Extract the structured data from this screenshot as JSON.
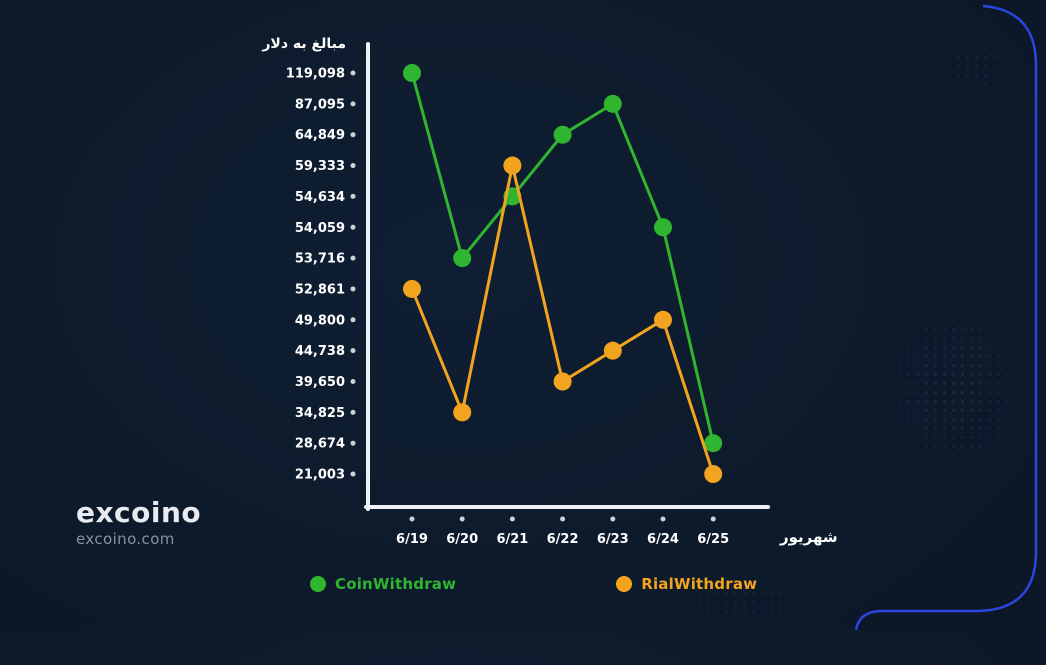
{
  "page": {
    "background_color": "#0d1a2b",
    "frame_accent_color": "#2b49e8"
  },
  "logo": {
    "brand": "excoino",
    "domain": "excoino.com"
  },
  "legend": [
    {
      "label": "CoinWithdraw",
      "color": "#2fb52f"
    },
    {
      "label": "RialWithdraw",
      "color": "#f2a41f"
    }
  ],
  "chart_data": {
    "type": "line",
    "title": "",
    "ylabel": "مبالغ به دلار",
    "xlabel": "شهریور",
    "x": [
      "6/19",
      "6/20",
      "6/21",
      "6/22",
      "6/23",
      "6/24",
      "6/25"
    ],
    "yticks": [
      119098,
      87095,
      64849,
      59333,
      54634,
      54059,
      53716,
      52861,
      49800,
      44738,
      39650,
      34825,
      28674,
      21003
    ],
    "ytick_labels": [
      "119,098",
      "87,095",
      "64,849",
      "59,333",
      "54,634",
      "54,059",
      "53,716",
      "52,861",
      "49,800",
      "44,738",
      "39,650",
      "34,825",
      "28,674",
      "21,003"
    ],
    "series": [
      {
        "name": "CoinWithdraw",
        "color": "#2fb52f",
        "values": [
          119098,
          53716,
          54634,
          64849,
          87095,
          54059,
          28674
        ]
      },
      {
        "name": "RialWithdraw",
        "color": "#f2a41f",
        "values": [
          52861,
          34825,
          59333,
          39650,
          44738,
          49800,
          21003
        ]
      }
    ],
    "axis": {
      "ordinal_y_ticks": true,
      "grid": false,
      "legend_position": "bottom"
    }
  }
}
